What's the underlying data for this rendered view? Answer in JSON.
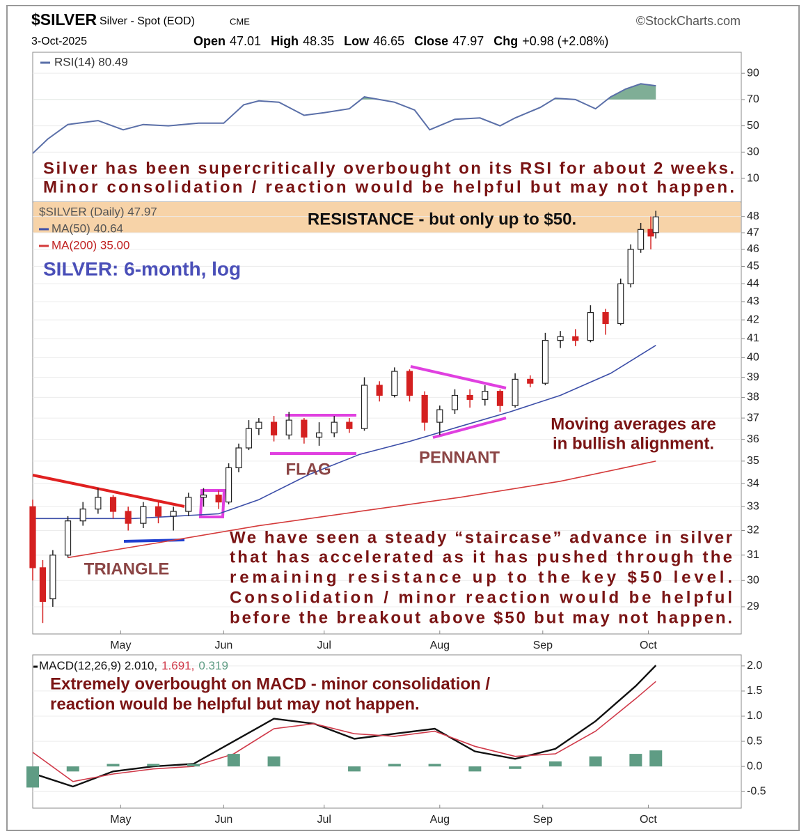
{
  "header": {
    "symbol": "$SILVER",
    "name": "Silver - Spot (EOD)",
    "exchange": "CME",
    "source": "©StockCharts.com",
    "date": "3-Oct-2025",
    "quote": [
      {
        "label": "Open",
        "value": 47.01
      },
      {
        "label": "High",
        "value": 48.35
      },
      {
        "label": "Low",
        "value": 46.65
      },
      {
        "label": "Close",
        "value": 47.97
      },
      {
        "label": "Chg",
        "value": "+0.98 (+2.08%)"
      }
    ]
  },
  "chart_data": [
    {
      "type": "line",
      "xlim": [
        0,
        141
      ],
      "ylim": [
        -8,
        106
      ],
      "yticks": [
        10,
        30,
        50,
        70,
        90
      ],
      "grid": true,
      "overbought": 70,
      "overbought_color": "#7fae96",
      "series": [
        {
          "name": "RSI(14) 80.49",
          "color": "#5a6fa8",
          "x": [
            0,
            3,
            7,
            13,
            18,
            22,
            27,
            33,
            38,
            42,
            45,
            49,
            54,
            58,
            63,
            66,
            72,
            76,
            79,
            84,
            89,
            93,
            96,
            101,
            104,
            108,
            112,
            115,
            118,
            121,
            124
          ],
          "values": [
            29,
            40,
            51,
            54,
            47,
            51,
            50,
            52,
            52,
            66,
            69,
            68,
            58,
            60,
            63,
            72,
            68,
            62,
            47,
            55,
            56,
            50,
            56,
            64,
            71,
            70,
            63,
            72,
            78,
            82,
            80.49
          ]
        }
      ],
      "annotation": [
        "Silver has been supercritically overbought on its RSI for about 2 weeks.",
        "Minor consolidation / reaction would be helpful but may not happen."
      ]
    },
    {
      "type": "candlestick",
      "log": true,
      "xlim": [
        0,
        141
      ],
      "ylim": [
        28,
        48.9
      ],
      "grid": true,
      "yticks": [
        29,
        30,
        31,
        32,
        33,
        34,
        35,
        36,
        37,
        38,
        39,
        40,
        41,
        42,
        43,
        44,
        45,
        46,
        47,
        48
      ],
      "xticks": [
        {
          "value": 17.5,
          "label": "May"
        },
        {
          "value": 38,
          "label": "Jun"
        },
        {
          "value": 58,
          "label": "Jul"
        },
        {
          "value": 81,
          "label": "Aug"
        },
        {
          "value": 101.5,
          "label": "Sep"
        },
        {
          "value": 122.5,
          "label": "Oct"
        }
      ],
      "name": "$SILVER (Daily) 47.97",
      "up_color": "#222222",
      "down_color": "#d42020",
      "x": [
        0,
        2,
        4,
        7,
        10,
        13,
        16,
        19,
        22,
        25,
        28,
        31,
        34,
        37,
        39,
        41,
        43,
        45,
        48,
        51,
        54,
        57,
        60,
        63,
        66,
        69,
        72,
        75,
        78,
        81,
        84,
        87,
        90,
        93,
        96,
        99,
        102,
        105,
        108,
        111,
        114,
        117,
        119,
        121,
        123,
        124
      ],
      "open": [
        33,
        30.5,
        29.3,
        31,
        32.4,
        32.9,
        33.4,
        32.8,
        32.3,
        33,
        32.6,
        32.8,
        33.4,
        33.5,
        33.2,
        34.7,
        35.6,
        36.5,
        36.8,
        36.2,
        36.9,
        36.1,
        36.3,
        36.8,
        36.5,
        38.6,
        38.1,
        39.3,
        38.1,
        36.8,
        37.4,
        38.1,
        37.9,
        38.3,
        37.6,
        38.9,
        38.7,
        40.9,
        41.1,
        40.9,
        42.4,
        41.8,
        44,
        46,
        47.2,
        47.01
      ],
      "high": [
        33.3,
        30.8,
        31.2,
        32.6,
        33.2,
        33.8,
        33.5,
        33,
        33.2,
        33.2,
        33,
        33.6,
        33.8,
        33.7,
        34.9,
        35.8,
        36.9,
        37,
        37.1,
        37.3,
        37,
        36.8,
        37.1,
        37,
        39,
        38.8,
        39.5,
        39.4,
        38.3,
        37.6,
        38.4,
        38.4,
        38.6,
        38.4,
        39.2,
        39.1,
        41.3,
        41.4,
        41.5,
        42.8,
        42.6,
        44.3,
        46.3,
        47.6,
        48,
        48.35
      ],
      "low": [
        30,
        28.4,
        29,
        30.9,
        32.2,
        32.7,
        32.5,
        32,
        32.1,
        32.3,
        32,
        32.6,
        33,
        32.9,
        33.1,
        34.5,
        35.5,
        36.2,
        35.9,
        36,
        35.8,
        35.7,
        36.1,
        36.3,
        36.4,
        37.8,
        38,
        37.8,
        36.4,
        36.2,
        37.2,
        37.5,
        37.6,
        37.3,
        37.5,
        38.5,
        38.6,
        40.5,
        40.6,
        40.8,
        41.2,
        41.7,
        43.8,
        45.8,
        46,
        46.65
      ],
      "close": [
        30.5,
        29.2,
        31,
        32.4,
        32.9,
        33.4,
        32.8,
        32.3,
        33,
        32.6,
        32.8,
        33.4,
        33.5,
        33.2,
        34.7,
        35.6,
        36.5,
        36.8,
        36.2,
        36.9,
        36.1,
        36.3,
        36.8,
        36.5,
        38.6,
        38.1,
        39.3,
        38.1,
        36.8,
        37.4,
        38.1,
        37.9,
        38.3,
        37.6,
        38.9,
        38.7,
        40.9,
        41.1,
        40.9,
        42.4,
        41.8,
        44,
        46,
        47.2,
        46.8,
        47.97
      ],
      "series": [
        {
          "name": "MA(50) 40.64",
          "color": "#3c4ea8",
          "x": [
            0,
            20,
            37,
            45,
            55,
            65,
            75,
            85,
            95,
            105,
            115,
            124
          ],
          "values": [
            32.5,
            32.5,
            32.7,
            33.3,
            34.4,
            35.3,
            35.9,
            36.6,
            37.3,
            38.1,
            39.2,
            40.64
          ]
        },
        {
          "name": "MA(200) 35.00",
          "color": "#d43a3a",
          "x": [
            7,
            25,
            45,
            65,
            85,
            105,
            124
          ],
          "values": [
            30.9,
            31.5,
            32.2,
            32.8,
            33.4,
            34.1,
            35
          ]
        }
      ],
      "title": "SILVER: 6-month, log",
      "resistance": {
        "label": "RESISTANCE - but only up to $50.",
        "range": [
          47,
          48.9
        ],
        "color": "#f7d3a8"
      },
      "annotations": [
        "FLAG",
        "PENNANT",
        "TRIANGLE",
        "Moving averages are",
        "in bullish alignment.",
        "We have seen a steady “staircase” advance in silver",
        "that has accelerated as it has pushed through the",
        "remaining resistance up to the key $50 level.",
        "Consolidation / minor reaction would be helpful",
        "before the breakout above $50 but may not happen."
      ]
    },
    {
      "type": "macd",
      "xlim": [
        0,
        141
      ],
      "ylim": [
        -0.83,
        2.22
      ],
      "grid": true,
      "yticks": [
        {
          "value": 2,
          "label": "2.0"
        },
        1.5,
        {
          "value": 1,
          "label": "1.0"
        },
        0.5,
        {
          "value": 0,
          "label": "0.0"
        },
        -0.5
      ],
      "xticks": [
        {
          "value": 17.5,
          "label": "May"
        },
        {
          "value": 38,
          "label": "Jun"
        },
        {
          "value": 58,
          "label": "Jul"
        },
        {
          "value": 81,
          "label": "Aug"
        },
        {
          "value": 101.5,
          "label": "Sep"
        },
        {
          "value": 122.5,
          "label": "Oct"
        }
      ],
      "x": [
        0,
        8,
        16,
        24,
        32,
        40,
        48,
        56,
        64,
        72,
        80,
        88,
        96,
        104,
        112,
        120,
        124
      ],
      "series": [
        {
          "name": "MACD(12,26,9) 2.010,",
          "color": "#111111",
          "style": "line",
          "values": [
            -0.14,
            -0.4,
            -0.1,
            0,
            0.05,
            0.5,
            0.95,
            0.85,
            0.55,
            0.65,
            0.75,
            0.3,
            0.15,
            0.35,
            0.9,
            1.6,
            2.01
          ]
        },
        {
          "name": "1.691,",
          "color": "#d03a4a",
          "style": "line",
          "values": [
            0.28,
            -0.3,
            -0.15,
            -0.05,
            0,
            0.25,
            0.75,
            0.85,
            0.65,
            0.6,
            0.7,
            0.4,
            0.2,
            0.25,
            0.7,
            1.35,
            1.691
          ]
        },
        {
          "name": "0.319",
          "color": "#5f9c84",
          "style": "bar",
          "values": [
            -0.42,
            -0.1,
            0.05,
            0.05,
            0.05,
            0.25,
            0.2,
            0,
            -0.1,
            0.05,
            0.05,
            -0.1,
            -0.05,
            0.1,
            0.2,
            0.25,
            0.319
          ]
        }
      ],
      "annotation": [
        "Extremely overbought on MACD - minor consolidation /",
        "reaction would be helpful but may not happen."
      ]
    }
  ]
}
